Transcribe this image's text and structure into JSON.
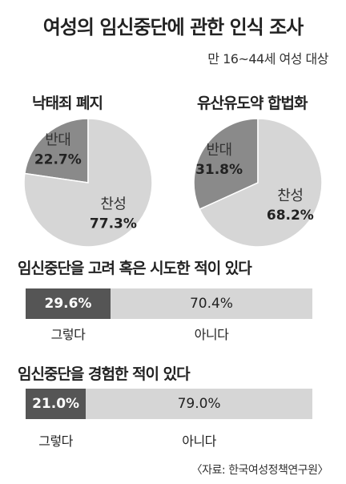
{
  "title": "여성의 임신중단에 관한 인식 조사",
  "subtitle": "만 16~44세 여성 대상",
  "source": "〈자료: 한국여성정책연구원〉",
  "colors": {
    "dark_gray": "#555555",
    "medium_gray": "#8a8a8a",
    "light_gray": "#d6d6d6"
  },
  "chart_data": [
    {
      "type": "pie",
      "title": "낙태죄 폐지",
      "slices": [
        {
          "label": "반대",
          "value": 22.7,
          "value_label": "22.7%"
        },
        {
          "label": "찬성",
          "value": 77.3,
          "value_label": "77.3%"
        }
      ]
    },
    {
      "type": "pie",
      "title": "유산유도약 합법화",
      "slices": [
        {
          "label": "반대",
          "value": 31.8,
          "value_label": "31.8%"
        },
        {
          "label": "찬성",
          "value": 68.2,
          "value_label": "68.2%"
        }
      ]
    },
    {
      "type": "bar",
      "orientation": "horizontal-stacked",
      "title": "임신중단을 고려 혹은 시도한 적이 있다",
      "categories": [
        "그렇다",
        "아니다"
      ],
      "values": [
        29.6,
        70.4
      ],
      "value_labels": [
        "29.6%",
        "70.4%"
      ]
    },
    {
      "type": "bar",
      "orientation": "horizontal-stacked",
      "title": "임신중단을 경험한 적이 있다",
      "categories": [
        "그렇다",
        "아니다"
      ],
      "values": [
        21.0,
        79.0
      ],
      "value_labels": [
        "21.0%",
        "79.0%"
      ]
    }
  ]
}
